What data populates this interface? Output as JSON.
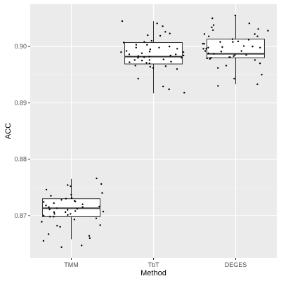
{
  "chart_data": {
    "type": "boxplot",
    "xlabel": "Method",
    "ylabel": "ACC",
    "ylim": [
      0.8625,
      0.9075
    ],
    "y_ticks": [
      0.87,
      0.88,
      0.89,
      0.9
    ],
    "y_tick_labels": [
      "0.87",
      "0.88",
      "0.89",
      "0.90"
    ],
    "categories": [
      "TMM",
      "TbT",
      "DEGES"
    ],
    "grid": true,
    "boxes": [
      {
        "name": "TMM",
        "min": 0.8658,
        "q1": 0.8698,
        "median": 0.8713,
        "q3": 0.873,
        "max": 0.8765,
        "points": [
          0.8752,
          0.8725,
          0.8718,
          0.8703,
          0.871,
          0.8731,
          0.87,
          0.8695,
          0.8712,
          0.8706,
          0.8682,
          0.866,
          0.8647,
          0.8655,
          0.8737,
          0.8722,
          0.8715,
          0.8715,
          0.8708,
          0.8703,
          0.8698,
          0.8689,
          0.8683,
          0.874,
          0.8746,
          0.8754,
          0.8756,
          0.8735,
          0.873,
          0.8726,
          0.872,
          0.8713,
          0.8711,
          0.8707,
          0.8701,
          0.8698,
          0.8693,
          0.868,
          0.8667,
          0.8664,
          0.8644,
          0.8728,
          0.8724,
          0.8716,
          0.8706,
          0.8766
        ]
      },
      {
        "name": "TbT",
        "min": 0.8917,
        "q1": 0.8969,
        "median": 0.8982,
        "q3": 0.9007,
        "max": 0.9045,
        "points": [
          0.901,
          0.8998,
          0.9019,
          0.9003,
          0.8984,
          0.8977,
          0.8972,
          0.8966,
          0.8964,
          0.8992,
          0.9007,
          0.902,
          0.9026,
          0.8929,
          0.899,
          0.8975,
          0.8982,
          0.8962,
          0.897,
          0.8986,
          0.8995,
          0.8976,
          0.898,
          0.9003,
          0.9,
          0.8986,
          0.8983,
          0.8973,
          0.896,
          0.8918,
          0.898,
          0.8996,
          0.9023,
          0.9036,
          0.9041,
          0.9045,
          0.8988,
          0.8981,
          0.8976,
          0.8971,
          0.8965,
          0.8924,
          0.8943,
          0.8984,
          0.899,
          0.9008,
          0.8998,
          0.8991
        ]
      },
      {
        "name": "DEGES",
        "min": 0.8933,
        "q1": 0.898,
        "median": 0.8987,
        "q3": 0.9013,
        "max": 0.9055,
        "points": [
          0.9018,
          0.9028,
          0.9008,
          0.8998,
          0.8992,
          0.8983,
          0.898,
          0.8976,
          0.895,
          0.9008,
          0.9022,
          0.9029,
          0.9041,
          0.9012,
          0.8985,
          0.897,
          0.8962,
          0.8933,
          0.8987,
          0.8992,
          0.8998,
          0.9005,
          0.9009,
          0.9018,
          0.9031,
          0.905,
          0.9055,
          0.8996,
          0.8991,
          0.8985,
          0.8979,
          0.8966,
          0.893,
          0.8999,
          0.9022,
          0.9034,
          0.9038,
          0.9005,
          0.9001,
          0.8988,
          0.8981,
          0.8978,
          0.8943,
          0.8981,
          0.8996,
          0.9,
          0.9013
        ]
      }
    ]
  }
}
